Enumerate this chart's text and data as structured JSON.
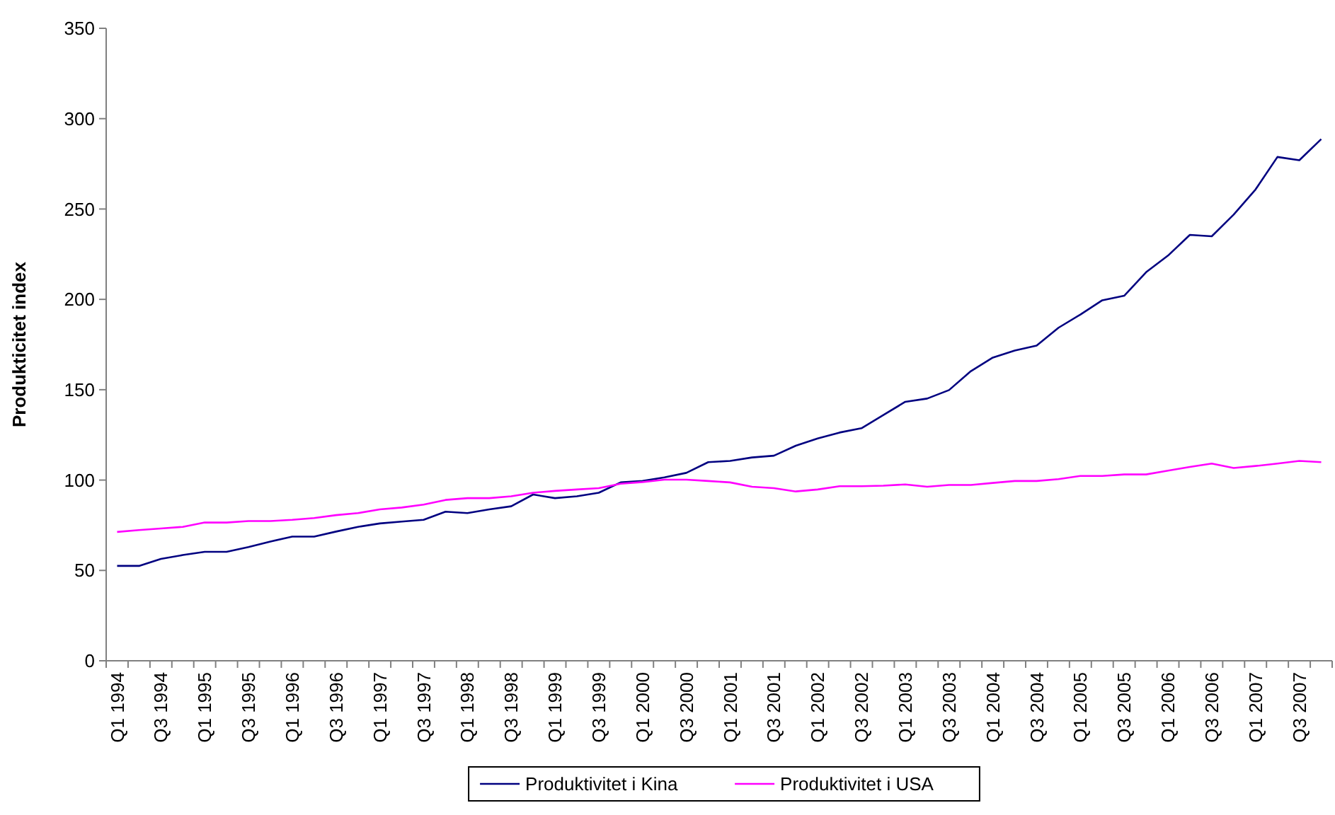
{
  "chart_data": {
    "type": "line",
    "ylabel": "Produkticitet index",
    "categories": [
      "Q1 1994",
      null,
      "Q3 1994",
      null,
      "Q1 1995",
      null,
      "Q3 1995",
      null,
      "Q1 1996",
      null,
      "Q3 1996",
      null,
      "Q1 1997",
      null,
      "Q3 1997",
      null,
      "Q1 1998",
      null,
      "Q3 1998",
      null,
      "Q1 1999",
      null,
      "Q3 1999",
      null,
      "Q1 2000",
      null,
      "Q3 2000",
      null,
      "Q1 2001",
      null,
      "Q3 2001",
      null,
      "Q1 2002",
      null,
      "Q3 2002",
      null,
      "Q1 2003",
      null,
      "Q3 2003",
      null,
      "Q1 2004",
      null,
      "Q3 2004",
      null,
      "Q1 2005",
      null,
      "Q3 2005",
      null,
      "Q1 2006",
      null,
      "Q3 2006",
      null,
      "Q1 2007",
      null,
      "Q3 2007",
      null
    ],
    "series": [
      {
        "name": "Produktivitet i Kina",
        "color": "#000080",
        "values": [
          52.5,
          52.5,
          56.4,
          58.5,
          60.3,
          60.3,
          62.9,
          66,
          68.7,
          68.7,
          71.5,
          74.1,
          76,
          77,
          78,
          82.5,
          81.7,
          83.8,
          85.5,
          92,
          90,
          91,
          93,
          98.7,
          99.5,
          101.5,
          104,
          109.9,
          110.6,
          112.5,
          113.5,
          119,
          123,
          126.3,
          128.7,
          136,
          143.3,
          145.1,
          149.8,
          160.3,
          167.8,
          171.7,
          174.4,
          184.3,
          191.6,
          199.5,
          202,
          215,
          224.2,
          235.7,
          234.9,
          246.9,
          260.8,
          278.8,
          277,
          288.7
        ]
      },
      {
        "name": "Produktivitet i USA",
        "color": "#ff00ff",
        "values": [
          71.3,
          72.3,
          73.2,
          74.1,
          76.5,
          76.5,
          77.3,
          77.3,
          78,
          79,
          80.6,
          81.7,
          83.8,
          84.8,
          86.4,
          89,
          90,
          90,
          91,
          93,
          94,
          94.8,
          95.5,
          98,
          98.9,
          100.2,
          100.2,
          99.5,
          98.7,
          96.3,
          95.5,
          93.7,
          94.8,
          96.6,
          96.6,
          96.9,
          97.6,
          96.3,
          97.3,
          97.3,
          98.4,
          99.5,
          99.5,
          100.5,
          102.3,
          102.3,
          103.1,
          103.1,
          105.2,
          107.3,
          109.1,
          106.7,
          107.8,
          109.1,
          110.6,
          109.9
        ]
      }
    ],
    "ylim": [
      0,
      350
    ],
    "yticks": [
      0,
      50,
      100,
      150,
      200,
      250,
      300,
      350
    ],
    "grid": false,
    "legend": "bottom",
    "marker": "none",
    "line_style": "solid"
  }
}
